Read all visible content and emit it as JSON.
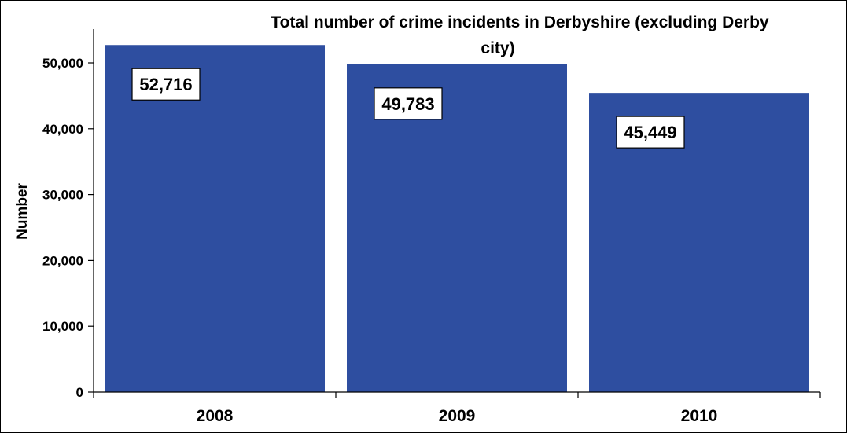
{
  "chart_data": {
    "type": "bar",
    "title": "Total number of crime incidents in Derbyshire (excluding Derby city)",
    "title_lines": [
      "Total number of crime incidents in Derbyshire (excluding Derby",
      "city)"
    ],
    "xlabel": "",
    "ylabel": "Number",
    "categories": [
      "2008",
      "2009",
      "2010"
    ],
    "values": [
      52716,
      49783,
      45449
    ],
    "data_labels": [
      "52,716",
      "49,783",
      "45,449"
    ],
    "ylim": [
      0,
      50000
    ],
    "yticks": [
      0,
      10000,
      20000,
      30000,
      40000,
      50000
    ],
    "ytick_labels": [
      "0",
      "10,000",
      "20,000",
      "30,000",
      "40,000",
      "50,000"
    ],
    "grid": false,
    "legend": "none",
    "bar_color": "#2E4EA0"
  }
}
